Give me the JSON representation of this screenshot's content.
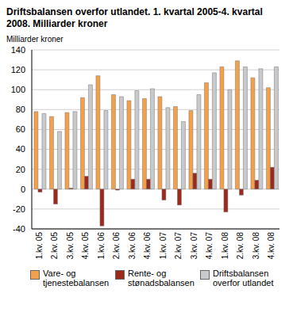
{
  "chart_data": {
    "type": "bar",
    "title": "Driftsbalansen overfor utlandet. 1. kvartal 2005-4. kvartal 2008. Milliarder kroner",
    "y_label": "Milliarder kroner",
    "categories": [
      "1.kv. 05",
      "2.kv. 05",
      "3.kv. 05",
      "4.kv. 05",
      "1.kv. 06",
      "2.kv. 06",
      "3.kv. 06",
      "4.kv. 06",
      "1.kv. 07",
      "2.kv. 07",
      "3.kv. 07",
      "4.kv. 07",
      "1.kv. 08",
      "2.kv. 08",
      "3.kv. 08",
      "4.kv. 08"
    ],
    "series": [
      {
        "name": "Vare- og tjenestebalansen",
        "color": "#f4a04a",
        "values": [
          78,
          73,
          77,
          92,
          114,
          95,
          89,
          91,
          93,
          83,
          79,
          107,
          123,
          129,
          112,
          102
        ]
      },
      {
        "name": "Rente- og stønadsbalansen",
        "color": "#9b2a1d",
        "values": [
          -3,
          -15,
          1,
          13,
          -37,
          -1,
          10,
          10,
          -11,
          -16,
          16,
          10,
          -23,
          -6,
          9,
          22
        ]
      },
      {
        "name": "Driftsbalansen overfor utlandet",
        "color": "#c8c9cc",
        "values": [
          76,
          58,
          78,
          105,
          79,
          93,
          99,
          101,
          82,
          68,
          95,
          117,
          100,
          123,
          121,
          123
        ]
      }
    ],
    "ylim": [
      -40,
      140
    ],
    "yticks": [
      -40,
      -20,
      0,
      20,
      40,
      60,
      80,
      100,
      120,
      140
    ],
    "grid": true,
    "legend": "bottom"
  }
}
